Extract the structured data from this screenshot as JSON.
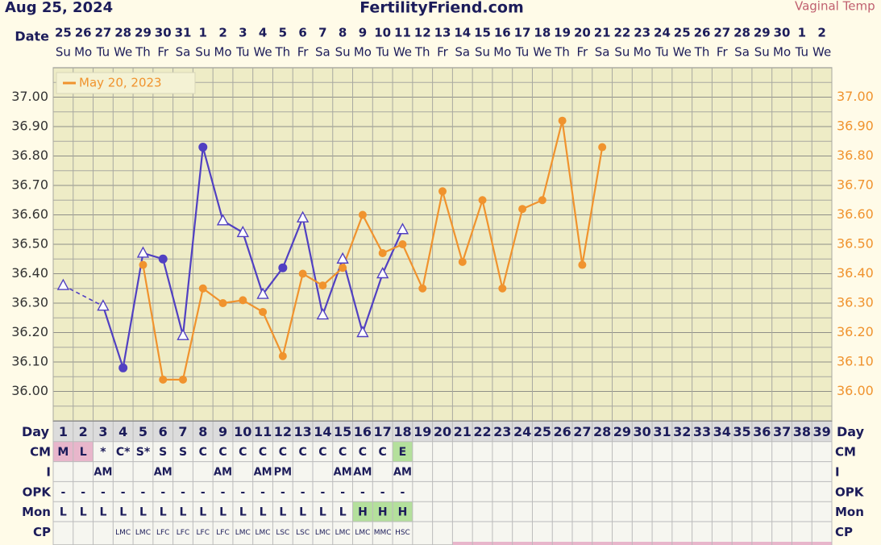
{
  "chart_data": {
    "type": "line",
    "date": "Aug 25, 2024",
    "title": "FertilityFriend.com",
    "temp_label": "Vaginal Temp",
    "date_label": "Date",
    "categories": [
      1,
      2,
      3,
      4,
      5,
      6,
      7,
      8,
      9,
      10,
      11,
      12,
      13,
      14,
      15,
      16,
      17,
      18,
      19,
      20,
      21,
      22,
      23,
      24,
      25,
      26,
      27,
      28,
      29,
      30,
      31,
      32,
      33,
      34,
      35,
      36,
      37,
      38,
      39
    ],
    "dates": [
      25,
      26,
      27,
      28,
      29,
      30,
      31,
      1,
      2,
      3,
      4,
      5,
      6,
      7,
      8,
      9,
      10,
      11,
      12,
      13,
      14,
      15,
      16,
      17,
      18,
      19,
      20,
      21,
      22,
      23,
      24,
      25,
      26,
      27,
      28,
      29,
      30,
      1,
      2
    ],
    "weekdays": [
      "Su",
      "Mo",
      "Tu",
      "We",
      "Th",
      "Fr",
      "Sa",
      "Su",
      "Mo",
      "Tu",
      "We",
      "Th",
      "Fr",
      "Sa",
      "Su",
      "Mo",
      "Tu",
      "We",
      "Th",
      "Fr",
      "Sa",
      "Su",
      "Mo",
      "Tu",
      "We",
      "Th",
      "Fr",
      "Sa",
      "Su",
      "Mo",
      "Tu",
      "We",
      "Th",
      "Fr",
      "Sa",
      "Su",
      "Mo",
      "Tu",
      "We"
    ],
    "series": [
      {
        "color": "#5140c2",
        "values": [
          36.36,
          null,
          36.29,
          36.08,
          36.47,
          36.45,
          36.19,
          36.83,
          36.58,
          36.54,
          36.33,
          36.42,
          36.59,
          36.26,
          36.45,
          36.2,
          36.4,
          36.55,
          null,
          null,
          null,
          null,
          null,
          null,
          null,
          null,
          null,
          null,
          null,
          null,
          null,
          null,
          null,
          null,
          null,
          null,
          null,
          null,
          null
        ],
        "markers": [
          "triangle",
          null,
          "triangle",
          "circle",
          "triangle",
          "circle",
          "triangle",
          "circle",
          "triangle",
          "triangle",
          "triangle",
          "circle",
          "triangle",
          "triangle",
          "triangle",
          "triangle",
          "triangle",
          "triangle",
          null,
          null,
          null,
          null,
          null,
          null,
          null,
          null,
          null,
          null,
          null,
          null,
          null,
          null,
          null,
          null,
          null,
          null,
          null,
          null,
          null
        ],
        "bridge_gaps": true
      },
      {
        "name": "May 20, 2023",
        "color": "#f0932e",
        "values": [
          null,
          null,
          null,
          null,
          36.43,
          36.04,
          36.04,
          36.35,
          36.3,
          36.31,
          36.27,
          36.12,
          36.4,
          36.36,
          36.42,
          36.6,
          36.47,
          36.5,
          36.35,
          36.68,
          36.44,
          36.65,
          36.35,
          36.62,
          36.65,
          36.92,
          36.43,
          36.83,
          null,
          null,
          null,
          null,
          null,
          null,
          null,
          null,
          null,
          null,
          null
        ],
        "marker": "circle"
      }
    ],
    "ylim": [
      35.9,
      37.1
    ],
    "yticks": [
      {
        "value": 36.0,
        "label": "36.00"
      },
      {
        "value": 36.1,
        "label": "36.10"
      },
      {
        "value": 36.2,
        "label": "36.20"
      },
      {
        "value": 36.3,
        "label": "36.30"
      },
      {
        "value": 36.4,
        "label": "36.40"
      },
      {
        "value": 36.5,
        "label": "36.50"
      },
      {
        "value": 36.6,
        "label": "36.60"
      },
      {
        "value": 36.7,
        "label": "36.70"
      },
      {
        "value": 36.8,
        "label": "36.80"
      },
      {
        "value": 36.9,
        "label": "36.90"
      },
      {
        "value": 37.0,
        "label": "37.00"
      }
    ],
    "grid_step": 0.05,
    "legend": "upper left",
    "day_label": "Day",
    "rows": [
      {
        "label": "CM",
        "size": 14,
        "colors": {
          "M": "#e8b6cb",
          "L": "#e8b6cb",
          "E": "#b4e09c"
        },
        "values": [
          "M",
          "L",
          "*",
          "C*",
          "S*",
          "S",
          "S",
          "C",
          "C",
          "C",
          "C",
          "C",
          "C",
          "C",
          "C",
          "C",
          "C",
          "E",
          null,
          null,
          null,
          null,
          null,
          null,
          null,
          null,
          null,
          null,
          null,
          null,
          null,
          null,
          null,
          null,
          null,
          null,
          null,
          null,
          null
        ]
      },
      {
        "label": "I",
        "size": 13,
        "colors": {},
        "values": [
          null,
          null,
          "AM",
          null,
          null,
          "AM",
          null,
          null,
          "AM",
          null,
          "AM",
          "PM",
          null,
          null,
          "AM",
          "AM",
          null,
          "AM",
          null,
          null,
          null,
          null,
          null,
          null,
          null,
          null,
          null,
          null,
          null,
          null,
          null,
          null,
          null,
          null,
          null,
          null,
          null,
          null,
          null
        ]
      },
      {
        "label": "OPK",
        "size": 14,
        "colors": {},
        "values": [
          "-",
          "-",
          "-",
          "-",
          "-",
          "-",
          "-",
          "-",
          "-",
          "-",
          "-",
          "-",
          "-",
          "-",
          "-",
          "-",
          "-",
          "-",
          null,
          null,
          null,
          null,
          null,
          null,
          null,
          null,
          null,
          null,
          null,
          null,
          null,
          null,
          null,
          null,
          null,
          null,
          null,
          null,
          null
        ]
      },
      {
        "label": "Mon",
        "size": 14,
        "colors": {
          "H": "#b4e09c"
        },
        "values": [
          "L",
          "L",
          "L",
          "L",
          "L",
          "L",
          "L",
          "L",
          "L",
          "L",
          "L",
          "L",
          "L",
          "L",
          "L",
          "H",
          "H",
          "H",
          null,
          null,
          null,
          null,
          null,
          null,
          null,
          null,
          null,
          null,
          null,
          null,
          null,
          null,
          null,
          null,
          null,
          null,
          null,
          null,
          null
        ]
      },
      {
        "label": "CP",
        "size": 9,
        "colors": {},
        "values": [
          null,
          null,
          null,
          "LMC",
          "LMC",
          "LFC",
          "LFC",
          "LFC",
          "LFC",
          "LMC",
          "LMC",
          "LSC",
          "LSC",
          "LMC",
          "LMC",
          "LMC",
          "MMC",
          "HSC",
          null,
          null,
          null,
          null,
          null,
          null,
          null,
          null,
          null,
          null,
          null,
          null,
          null,
          null,
          null,
          null,
          null,
          null,
          null,
          null,
          null
        ]
      }
    ]
  }
}
